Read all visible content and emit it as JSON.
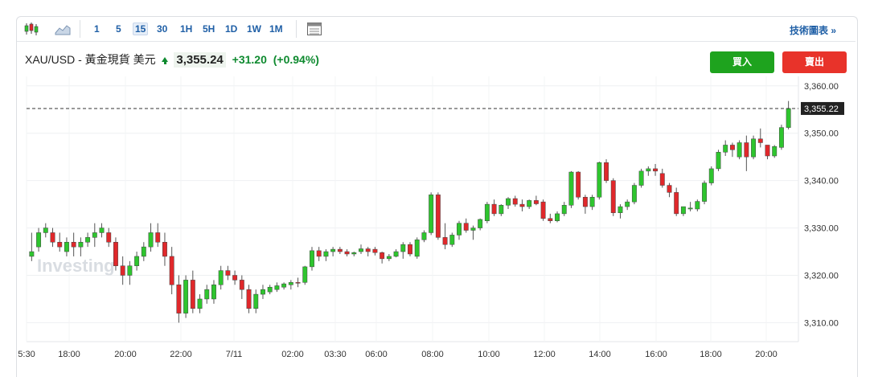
{
  "toolbar": {
    "candle_icon": "candlestick-icon",
    "area_icon": "area-chart-icon",
    "timeframes": [
      "1",
      "5",
      "15",
      "30",
      "1H",
      "5H",
      "1D",
      "1W",
      "1M"
    ],
    "active_timeframe": "15",
    "table_icon": "table-icon",
    "advanced_label": "技術圖表 »"
  },
  "header": {
    "instrument": "XAU/USD - 黃金現貨 美元",
    "price": "3,355.24",
    "change": "+31.20",
    "change_pct": "(+0.94%)"
  },
  "actions": {
    "buy_label": "買入",
    "sell_label": "賣出"
  },
  "watermark": "Investing",
  "colors": {
    "up": "#2ec52e",
    "down": "#e0282b",
    "change_positive": "#0e8a2f",
    "buy": "#1ea31e",
    "sell": "#e8332a"
  },
  "chart_data": {
    "type": "candlestick",
    "ylim": [
      3306,
      3362
    ],
    "y_ticks": [
      "3,310.00",
      "3,320.00",
      "3,330.00",
      "3,340.00",
      "3,350.00",
      "3,360.00"
    ],
    "x_ticks": [
      "5:30",
      "18:00",
      "20:00",
      "22:00",
      "7/11",
      "02:00",
      "03:30",
      "06:00",
      "08:00",
      "10:00",
      "12:00",
      "14:00",
      "16:00",
      "18:00",
      "20:00"
    ],
    "current_price_label": "3,355.22",
    "current_price": 3355.22,
    "candles": [
      [
        3324,
        3329,
        3323,
        3325
      ],
      [
        3326,
        3330,
        3325,
        3329
      ],
      [
        3329,
        3331,
        3328,
        3330
      ],
      [
        3329,
        3330,
        3326,
        3327
      ],
      [
        3327,
        3329,
        3325,
        3326
      ],
      [
        3325,
        3328,
        3324,
        3327
      ],
      [
        3327,
        3329,
        3324,
        3326
      ],
      [
        3326,
        3328,
        3324,
        3327
      ],
      [
        3327,
        3329,
        3326,
        3328
      ],
      [
        3328,
        3331,
        3326,
        3329
      ],
      [
        3329,
        3331,
        3328,
        3330
      ],
      [
        3329,
        3330,
        3326,
        3327
      ],
      [
        3327,
        3328,
        3321,
        3322
      ],
      [
        3322,
        3324,
        3318,
        3320
      ],
      [
        3320,
        3323,
        3318,
        3322
      ],
      [
        3322,
        3325,
        3321,
        3324
      ],
      [
        3324,
        3327,
        3323,
        3326
      ],
      [
        3326,
        3331,
        3325,
        3329
      ],
      [
        3329,
        3331,
        3326,
        3327
      ],
      [
        3327,
        3329,
        3322,
        3324
      ],
      [
        3324,
        3326,
        3316,
        3318
      ],
      [
        3318,
        3320,
        3310,
        3312
      ],
      [
        3312,
        3320,
        3311,
        3319
      ],
      [
        3319,
        3321,
        3312,
        3313
      ],
      [
        3313,
        3316,
        3312,
        3315
      ],
      [
        3315,
        3318,
        3314,
        3317
      ],
      [
        3315,
        3319,
        3314,
        3318
      ],
      [
        3318,
        3322,
        3317,
        3321
      ],
      [
        3321,
        3322,
        3319,
        3320
      ],
      [
        3320,
        3321,
        3318,
        3319
      ],
      [
        3319,
        3320,
        3315,
        3317
      ],
      [
        3317,
        3318,
        3312,
        3313
      ],
      [
        3313,
        3317,
        3312,
        3316
      ],
      [
        3316,
        3318,
        3315,
        3317
      ],
      [
        3316.5,
        3318,
        3316,
        3317.5
      ],
      [
        3317,
        3318.5,
        3316.5,
        3317.8
      ],
      [
        3317.5,
        3318.5,
        3317,
        3318.2
      ],
      [
        3318,
        3319,
        3317,
        3318.5
      ],
      [
        3318.5,
        3319.5,
        3317.5,
        3318.4
      ],
      [
        3318.5,
        3322,
        3318,
        3321.8
      ],
      [
        3321.8,
        3326,
        3321,
        3325.2
      ],
      [
        3325.2,
        3326,
        3323,
        3324
      ],
      [
        3324,
        3325.5,
        3323,
        3325
      ],
      [
        3325,
        3326,
        3324,
        3325.5
      ],
      [
        3325.5,
        3326,
        3324.5,
        3325
      ],
      [
        3325,
        3325.5,
        3324,
        3324.5
      ],
      [
        3324.5,
        3325,
        3324,
        3324.8
      ],
      [
        3325,
        3326.5,
        3324.5,
        3325.6
      ],
      [
        3325.6,
        3326,
        3324,
        3325
      ],
      [
        3325.5,
        3326,
        3324.2,
        3324.8
      ],
      [
        3324.8,
        3325,
        3322.5,
        3323.5
      ],
      [
        3323.5,
        3324.5,
        3323,
        3324
      ],
      [
        3324,
        3325.5,
        3323.8,
        3325
      ],
      [
        3325,
        3327,
        3323.5,
        3326.5
      ],
      [
        3326.5,
        3327,
        3324,
        3324.5
      ],
      [
        3324,
        3328,
        3323.5,
        3327.5
      ],
      [
        3327.5,
        3329.5,
        3327,
        3329
      ],
      [
        3329,
        3337.5,
        3328.5,
        3337
      ],
      [
        3337,
        3337.5,
        3327.5,
        3328
      ],
      [
        3328,
        3331,
        3325.5,
        3326.5
      ],
      [
        3326.5,
        3329,
        3326,
        3328.5
      ],
      [
        3328.5,
        3331.5,
        3327.5,
        3331
      ],
      [
        3331,
        3332,
        3329,
        3329.5
      ],
      [
        3329.5,
        3330.5,
        3327.5,
        3330
      ],
      [
        3330,
        3332,
        3329.5,
        3331.8
      ],
      [
        3331.5,
        3335.5,
        3331,
        3335
      ],
      [
        3335,
        3336,
        3332.5,
        3333
      ],
      [
        3333,
        3335,
        3332.5,
        3334.8
      ],
      [
        3334.8,
        3336.5,
        3334,
        3336.2
      ],
      [
        3336.2,
        3336.8,
        3334.5,
        3335
      ],
      [
        3335,
        3336,
        3333.5,
        3334.5
      ],
      [
        3334.5,
        3336,
        3334,
        3335.8
      ],
      [
        3335.8,
        3336.8,
        3334.8,
        3335.1
      ],
      [
        3335.5,
        3336,
        3331.5,
        3332
      ],
      [
        3332,
        3333,
        3331,
        3331.5
      ],
      [
        3331.5,
        3333.5,
        3331.2,
        3333
      ],
      [
        3333,
        3335.5,
        3332.5,
        3334.8
      ],
      [
        3334.8,
        3342,
        3334.2,
        3341.8
      ],
      [
        3341.8,
        3342,
        3336,
        3336.5
      ],
      [
        3336.5,
        3337,
        3333,
        3334.5
      ],
      [
        3334.5,
        3337,
        3333.8,
        3336.5
      ],
      [
        3336.5,
        3344,
        3336,
        3343.8
      ],
      [
        3343.8,
        3344.5,
        3339.5,
        3340
      ],
      [
        3340,
        3340.5,
        3332.5,
        3333.2
      ],
      [
        3333.2,
        3335,
        3332,
        3334.5
      ],
      [
        3334.5,
        3336,
        3333.8,
        3335.5
      ],
      [
        3335.5,
        3339.5,
        3335,
        3339
      ],
      [
        3339,
        3342.5,
        3338.5,
        3342
      ],
      [
        3342,
        3343,
        3341,
        3342.5
      ],
      [
        3342.5,
        3343.5,
        3341,
        3342
      ],
      [
        3341.5,
        3342.5,
        3338.5,
        3339
      ],
      [
        3339,
        3339.5,
        3336.5,
        3337.5
      ],
      [
        3337.5,
        3338.5,
        3332.5,
        3333
      ],
      [
        3333,
        3334.5,
        3332.5,
        3334.5
      ],
      [
        3334,
        3335.5,
        3333.5,
        3334.2
      ],
      [
        3334,
        3336,
        3333.5,
        3335.6
      ],
      [
        3335.6,
        3340,
        3335,
        3339.5
      ],
      [
        3339.5,
        3343,
        3339,
        3342.5
      ],
      [
        3342.5,
        3346.5,
        3342,
        3346
      ],
      [
        3346,
        3348.5,
        3345.2,
        3347.5
      ],
      [
        3347.5,
        3348,
        3345,
        3346.5
      ],
      [
        3345,
        3348.5,
        3344.5,
        3348
      ],
      [
        3348,
        3349.5,
        3342,
        3345
      ],
      [
        3345,
        3349.5,
        3344.5,
        3348.8
      ],
      [
        3348.8,
        3351,
        3347,
        3348
      ],
      [
        3347.5,
        3347.5,
        3344.5,
        3345.2
      ],
      [
        3345.2,
        3347.5,
        3344.8,
        3347.2
      ],
      [
        3347,
        3351.8,
        3346.5,
        3351.2
      ],
      [
        3351.2,
        3356.8,
        3350.8,
        3355.22
      ]
    ]
  }
}
